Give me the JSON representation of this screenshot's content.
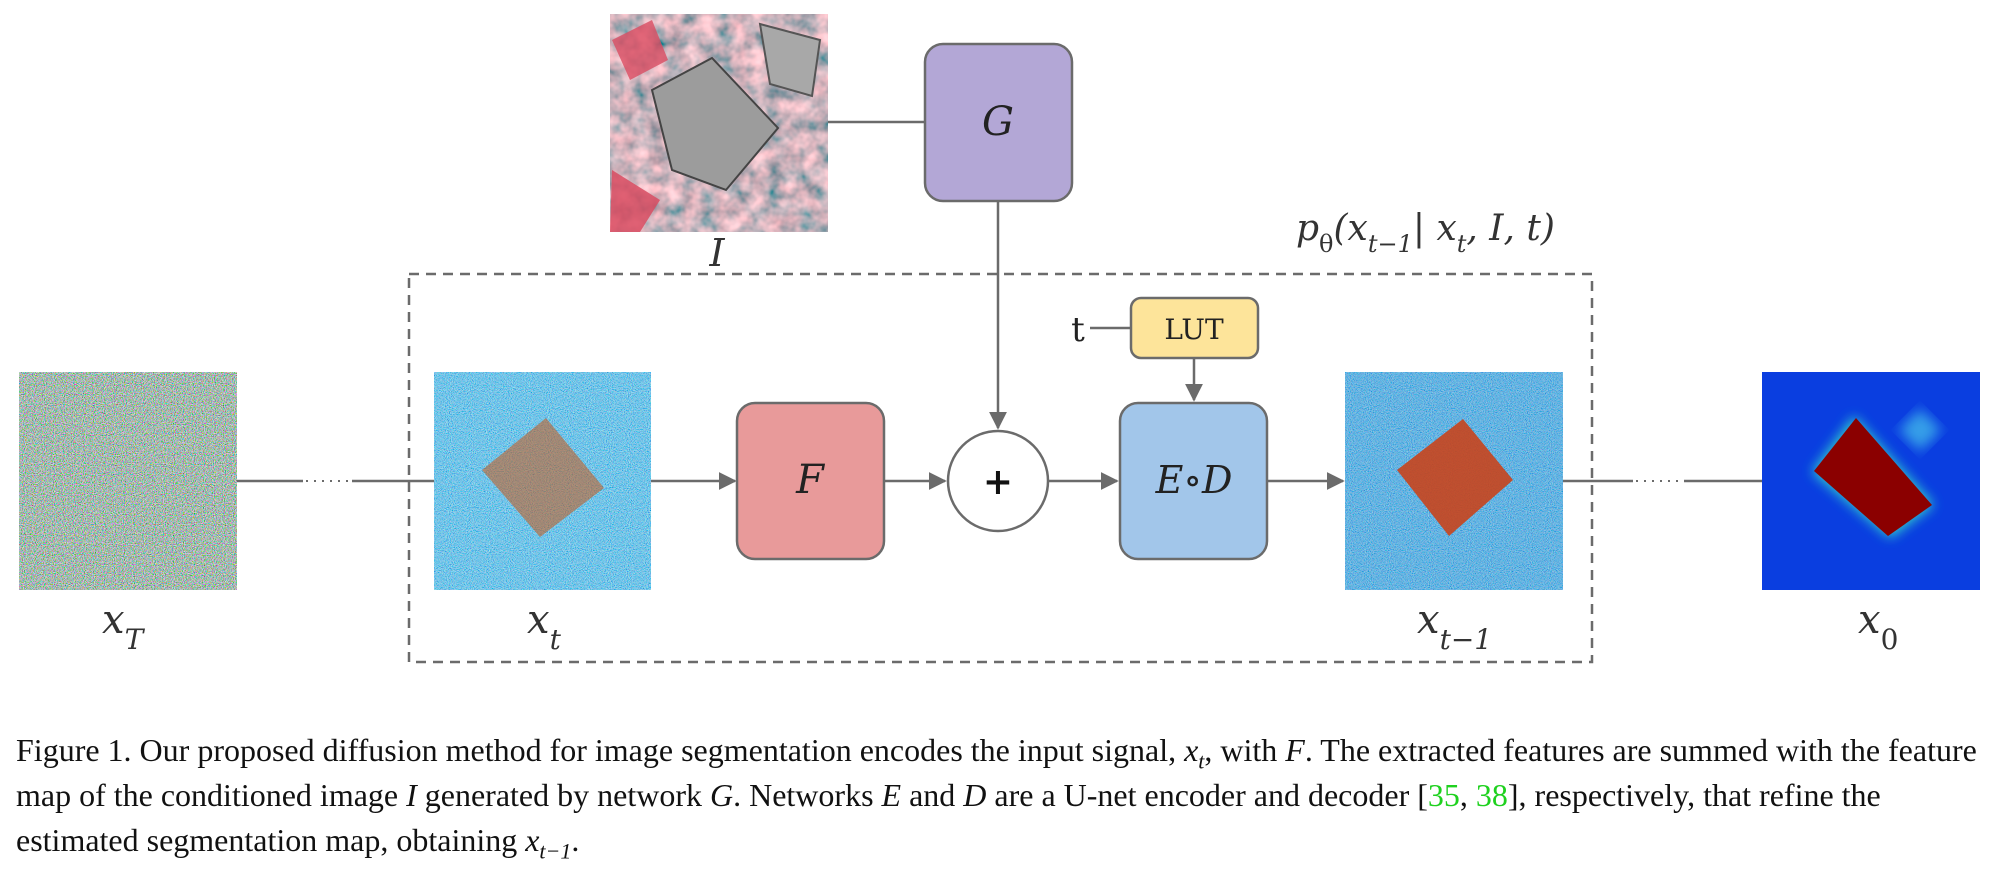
{
  "diagram": {
    "conditioning_image_label": "I",
    "network_g_label": "G",
    "network_f_label": "F",
    "sum_symbol": "+",
    "encoder_decoder_label": "E∘D",
    "lut_label": "LUT",
    "timestep_label": "t",
    "posterior_label": {
      "p": "p",
      "theta": "θ",
      "open": "(x",
      "sub_prev": "t−1",
      "mid": "| x",
      "sub_t": "t",
      "close": ", I, t)"
    },
    "x_T": {
      "base": "x",
      "sub": "T"
    },
    "x_t": {
      "base": "x",
      "sub": "t"
    },
    "x_t_minus_1": {
      "base": "x",
      "sub": "t−1"
    },
    "x_0": {
      "base": "x",
      "sub": "0"
    },
    "colors": {
      "g_box": "#b3a7d6",
      "f_box": "#e89a9a",
      "ed_box": "#a2c6ea",
      "lut_box": "#fde49a",
      "lines": "#6b6b6b",
      "dashed_frame": "#6b6b6b",
      "segment_red": "#8b0000",
      "map_blue": "#0a3ee0"
    }
  },
  "caption": {
    "s1": "Figure 1. Our proposed diffusion method for image segmentation encodes the input signal, ",
    "s1_var": "x",
    "s1_sub": "t",
    "s2": ", with ",
    "s2_var": "F",
    "s3": ". The extracted features are summed with the feature map of the conditioned image ",
    "s3_var": "I",
    "s4": " generated by network ",
    "s4_var": "G",
    "s5": ". Networks ",
    "s5_var": "E",
    "s6": " and ",
    "s6_var": "D",
    "s7": " are a U-net encoder and decoder [",
    "cite1": "35",
    "cite_sep": ", ",
    "cite2": "38",
    "s8": "], respectively, that refine the estimated segmentation map, obtaining ",
    "s8_var": "x",
    "s8_sub": "t−1",
    "s9": "."
  }
}
